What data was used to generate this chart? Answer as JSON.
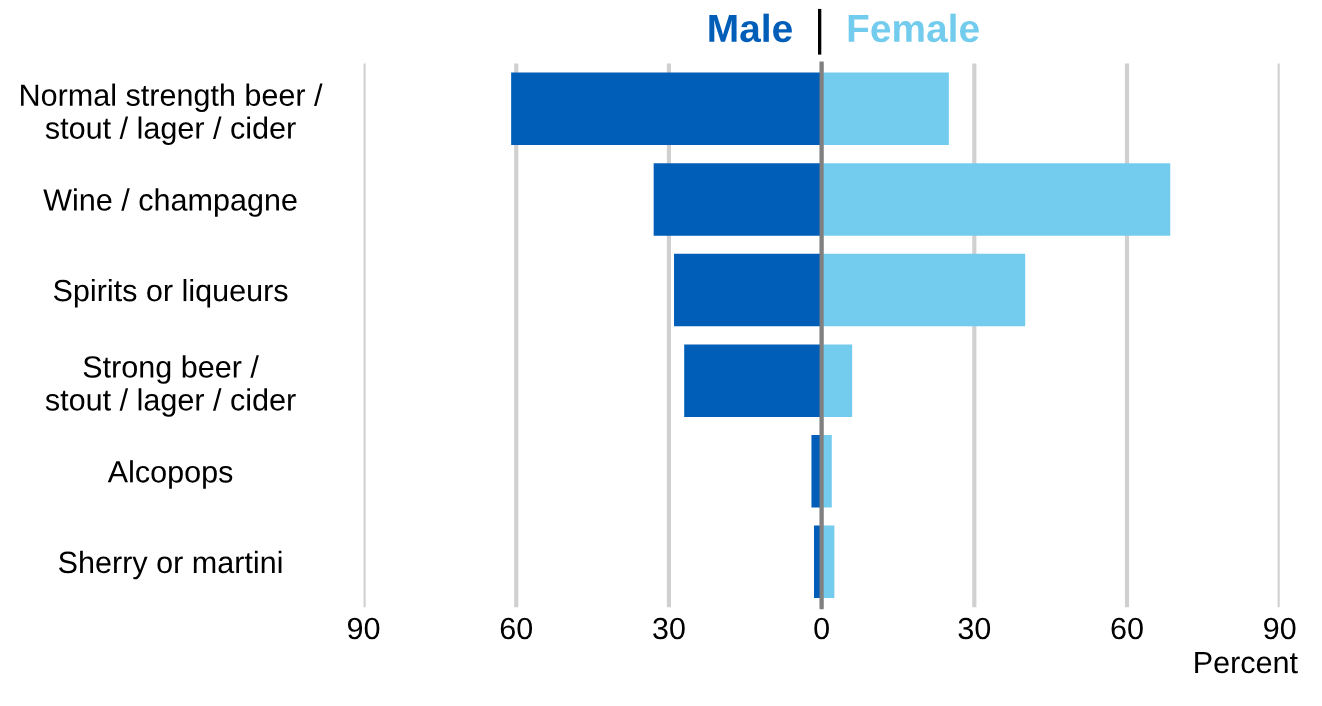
{
  "chart_data": {
    "type": "bar",
    "orientation": "horizontal",
    "xlabel": "Percent",
    "categories": [
      "Normal strength beer /\nstout / lager / cider",
      "Wine / champagne",
      "Spirits or liqueurs",
      "Strong beer /\nstout / lager / cider",
      "Alcopops",
      "Sherry or martini"
    ],
    "series": [
      {
        "name": "Male",
        "color": "#005eb8",
        "values": [
          -61,
          -33,
          -29,
          -27,
          -2,
          -1.5
        ]
      },
      {
        "name": "Female",
        "color": "#73cced",
        "values": [
          25,
          68.5,
          40,
          6,
          2,
          2.5
        ]
      }
    ],
    "xlim": [
      -90,
      90
    ],
    "xticks": [
      {
        "value": -90,
        "label": "90"
      },
      {
        "value": -60,
        "label": "60"
      },
      {
        "value": -30,
        "label": "30"
      },
      0,
      30,
      60,
      90
    ],
    "stacked": true,
    "grid": "x",
    "legend": "top"
  }
}
